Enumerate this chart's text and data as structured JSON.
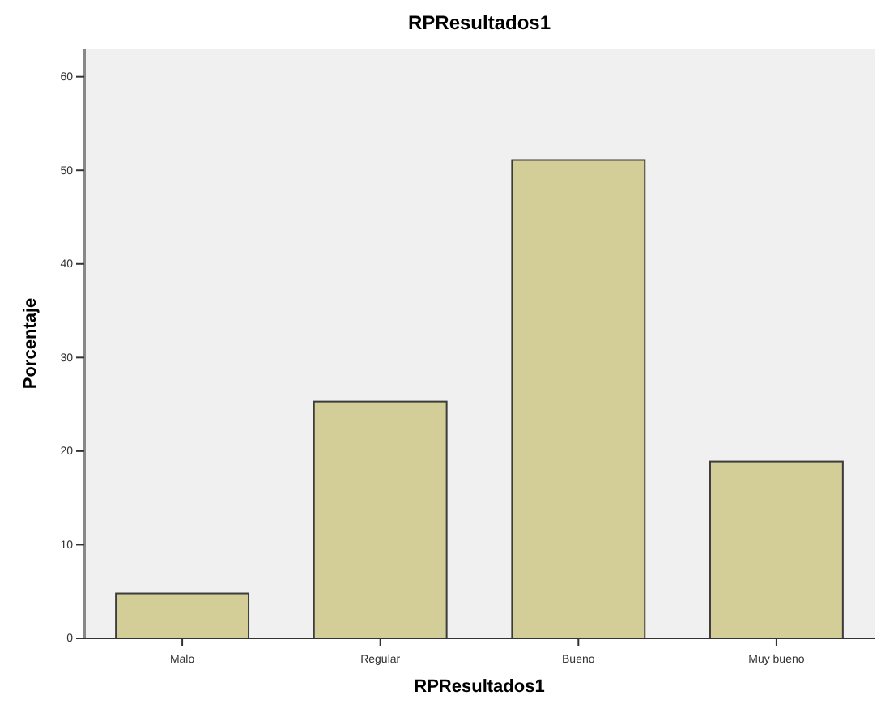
{
  "chart_data": {
    "type": "bar",
    "title": "RPResultados1",
    "xlabel": "RPResultados1",
    "ylabel": "Porcentaje",
    "categories": [
      "Malo",
      "Regular",
      "Bueno",
      "Muy bueno"
    ],
    "values": [
      4.8,
      25.3,
      51.1,
      18.9
    ],
    "color": "#d3ce98",
    "ylim": [
      0,
      63
    ],
    "yticks": [
      0,
      10,
      20,
      30,
      40,
      50,
      60
    ],
    "grid": false
  }
}
